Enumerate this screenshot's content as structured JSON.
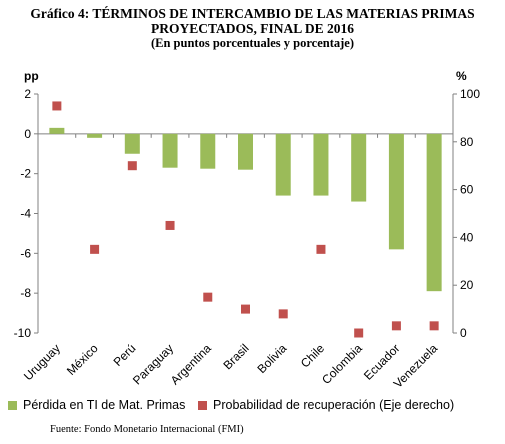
{
  "title_line1": "Gráfico 4: TÉRMINOS DE INTERCAMBIO DE LAS MATERIAS PRIMAS",
  "title_line2": "PROYECTADOS, FINAL DE 2016",
  "subtitle": "(En puntos porcentuales y porcentaje)",
  "source": "Fuente: Fondo Monetario Internacional (FMI)",
  "colors": {
    "bars": "#9bbb59",
    "points": "#c0504d",
    "axis": "#808080"
  },
  "chart_data": {
    "type": "bar",
    "categories": [
      "Uruguay",
      "México",
      "Perú",
      "Paraguay",
      "Argentina",
      "Brasil",
      "Bolivia",
      "Chile",
      "Colombia",
      "Ecuador",
      "Venezuela"
    ],
    "series": [
      {
        "name": "Pérdida en TI de Mat. Primas",
        "type": "bar",
        "axis": "left",
        "values": [
          0.3,
          -0.2,
          -1.0,
          -1.7,
          -1.75,
          -1.8,
          -3.1,
          -3.1,
          -3.4,
          -5.8,
          -7.9
        ]
      },
      {
        "name": "Probabilidad de recuperación (Eje derecho)",
        "type": "scatter",
        "axis": "right",
        "values": [
          95,
          35,
          70,
          45,
          15,
          10,
          8,
          35,
          0,
          3,
          3
        ]
      }
    ],
    "y_left": {
      "label": "pp",
      "ylim": [
        -10,
        2
      ],
      "ticks": [
        2,
        0,
        -2,
        -4,
        -6,
        -8,
        -10
      ]
    },
    "y_right": {
      "label": "%",
      "ylim": [
        0,
        100
      ],
      "ticks": [
        100,
        80,
        60,
        40,
        20,
        0
      ]
    },
    "grid": false,
    "legend_position": "bottom"
  }
}
